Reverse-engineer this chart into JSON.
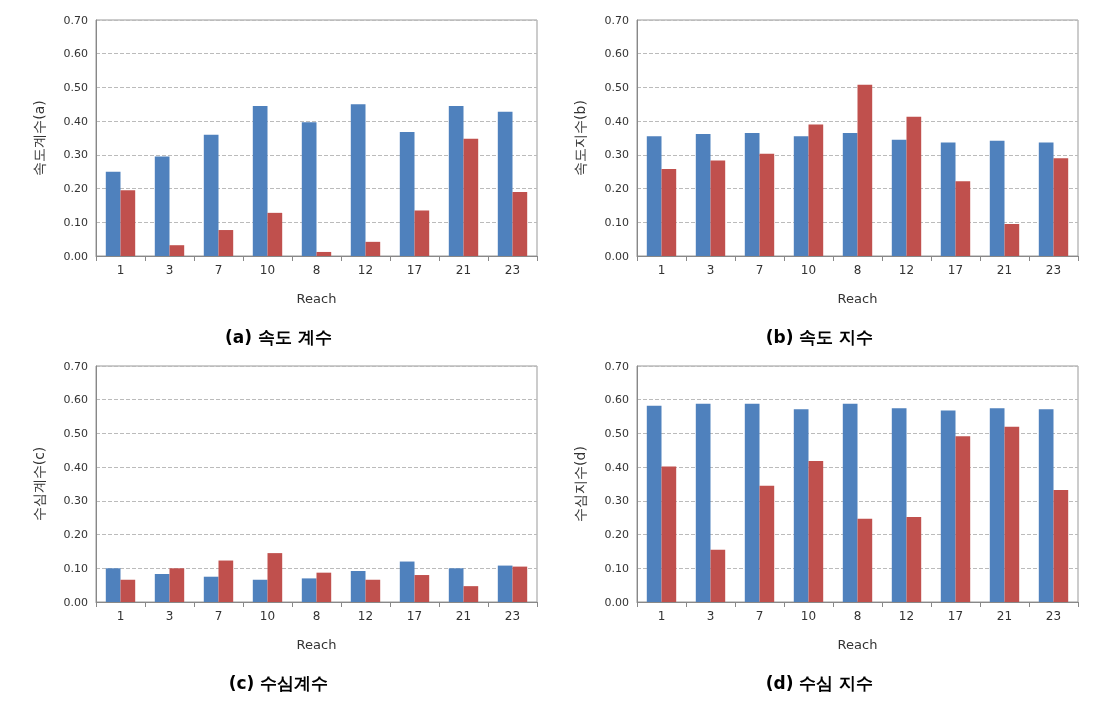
{
  "chart_data": [
    {
      "type": "bar",
      "title": "(a) 속도 계수",
      "xlabel": "Reach",
      "ylabel": "속도계수(a)",
      "categories": [
        "1",
        "3",
        "7",
        "10",
        "8",
        "12",
        "17",
        "21",
        "23"
      ],
      "ylim": [
        0,
        0.7
      ],
      "yticks": [
        {
          "value": 0,
          "label": "0.00"
        },
        {
          "value": 0.1,
          "label": "0.10"
        },
        {
          "value": 0.2,
          "label": "0.20"
        },
        {
          "value": 0.3,
          "label": "0.30"
        },
        {
          "value": 0.4,
          "label": "0.40"
        },
        {
          "value": 0.5,
          "label": "0.50"
        },
        {
          "value": 0.6,
          "label": "0.60"
        },
        {
          "value": 0.7,
          "label": "0.70"
        }
      ],
      "grid": "y",
      "series": [
        {
          "color": "#4f81bd",
          "values": [
            0.25,
            0.295,
            0.36,
            0.445,
            0.397,
            0.45,
            0.368,
            0.445,
            0.428
          ]
        },
        {
          "color": "#c0504d",
          "values": [
            0.195,
            0.032,
            0.077,
            0.128,
            0.012,
            0.042,
            0.135,
            0.348,
            0.19
          ]
        }
      ]
    },
    {
      "type": "bar",
      "title": "(b) 속도 지수",
      "xlabel": "Reach",
      "ylabel": "속도지수(b)",
      "categories": [
        "1",
        "3",
        "7",
        "10",
        "8",
        "12",
        "17",
        "21",
        "23"
      ],
      "ylim": [
        0,
        0.7
      ],
      "yticks": [
        {
          "value": 0,
          "label": "0.00"
        },
        {
          "value": 0.1,
          "label": "0.10"
        },
        {
          "value": 0.2,
          "label": "0.20"
        },
        {
          "value": 0.3,
          "label": "0.30"
        },
        {
          "value": 0.4,
          "label": "0.40"
        },
        {
          "value": 0.5,
          "label": "0.50"
        },
        {
          "value": 0.6,
          "label": "0.60"
        },
        {
          "value": 0.7,
          "label": "0.70"
        }
      ],
      "grid": "y",
      "series": [
        {
          "color": "#4f81bd",
          "values": [
            0.355,
            0.362,
            0.365,
            0.355,
            0.365,
            0.345,
            0.337,
            0.342,
            0.337
          ]
        },
        {
          "color": "#c0504d",
          "values": [
            0.258,
            0.283,
            0.303,
            0.39,
            0.508,
            0.413,
            0.222,
            0.095,
            0.29
          ]
        }
      ]
    },
    {
      "type": "bar",
      "title": "(c) 수심계수",
      "xlabel": "Reach",
      "ylabel": "수심계수(c)",
      "categories": [
        "1",
        "3",
        "7",
        "10",
        "8",
        "12",
        "17",
        "21",
        "23"
      ],
      "ylim": [
        0,
        0.7
      ],
      "yticks": [
        {
          "value": 0,
          "label": "0.00"
        },
        {
          "value": 0.1,
          "label": "0.10"
        },
        {
          "value": 0.2,
          "label": "0.20"
        },
        {
          "value": 0.3,
          "label": "0.30"
        },
        {
          "value": 0.4,
          "label": "0.40"
        },
        {
          "value": 0.5,
          "label": "0.50"
        },
        {
          "value": 0.6,
          "label": "0.60"
        },
        {
          "value": 0.7,
          "label": "0.70"
        }
      ],
      "grid": "y",
      "series": [
        {
          "color": "#4f81bd",
          "values": [
            0.1,
            0.083,
            0.075,
            0.066,
            0.07,
            0.092,
            0.12,
            0.1,
            0.108
          ]
        },
        {
          "color": "#c0504d",
          "values": [
            0.066,
            0.1,
            0.123,
            0.145,
            0.087,
            0.066,
            0.08,
            0.047,
            0.105
          ]
        }
      ]
    },
    {
      "type": "bar",
      "title": "(d) 수심 지수",
      "xlabel": "Reach",
      "ylabel": "수심지수(d)",
      "categories": [
        "1",
        "3",
        "7",
        "10",
        "8",
        "12",
        "17",
        "21",
        "23"
      ],
      "ylim": [
        0,
        0.7
      ],
      "yticks": [
        {
          "value": 0,
          "label": "0.00"
        },
        {
          "value": 0.1,
          "label": "0.10"
        },
        {
          "value": 0.2,
          "label": "0.20"
        },
        {
          "value": 0.3,
          "label": "0.30"
        },
        {
          "value": 0.4,
          "label": "0.40"
        },
        {
          "value": 0.5,
          "label": "0.50"
        },
        {
          "value": 0.6,
          "label": "0.60"
        },
        {
          "value": 0.7,
          "label": "0.70"
        }
      ],
      "grid": "y",
      "series": [
        {
          "color": "#4f81bd",
          "values": [
            0.582,
            0.588,
            0.588,
            0.572,
            0.588,
            0.575,
            0.568,
            0.575,
            0.572
          ]
        },
        {
          "color": "#c0504d",
          "values": [
            0.402,
            0.155,
            0.345,
            0.418,
            0.247,
            0.252,
            0.492,
            0.52,
            0.332
          ]
        }
      ]
    }
  ]
}
